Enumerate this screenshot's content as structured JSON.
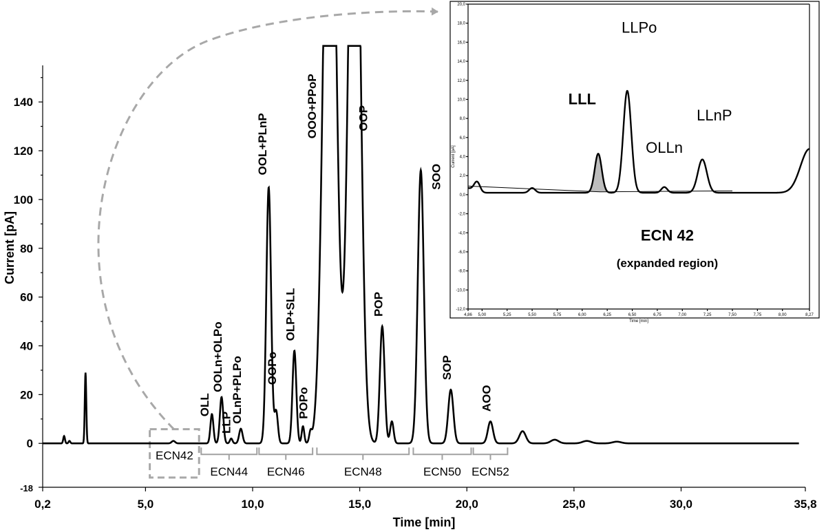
{
  "chart_data": [
    {
      "type": "line",
      "title": "",
      "xlabel": "Time [min]",
      "ylabel": "Current [pA]",
      "xlim": [
        0.2,
        35.8
      ],
      "ylim": [
        -18,
        155
      ],
      "x_ticks": [
        "0,2",
        "5,0",
        "10,0",
        "15,0",
        "20,0",
        "25,0",
        "30,0",
        "35,8"
      ],
      "x_tick_values": [
        0.2,
        5.0,
        10.0,
        15.0,
        20.0,
        25.0,
        30.0,
        35.8
      ],
      "y_ticks": [
        "-18",
        "0",
        "20",
        "40",
        "60",
        "80",
        "100",
        "120",
        "140"
      ],
      "y_tick_values": [
        -18,
        0,
        20,
        40,
        60,
        80,
        100,
        120,
        140
      ],
      "clip_max": 163,
      "series": [
        {
          "peaks": [
            {
              "x": 1.2,
              "h": 3,
              "w": 0.04
            },
            {
              "x": 1.45,
              "h": 1,
              "w": 0.04
            },
            {
              "x": 2.2,
              "h": 29,
              "w": 0.035
            },
            {
              "x": 6.3,
              "h": 1,
              "w": 0.08
            },
            {
              "x": 8.1,
              "h": 12,
              "w": 0.07
            },
            {
              "x": 8.55,
              "h": 19,
              "w": 0.08
            },
            {
              "x": 9.0,
              "h": 2,
              "w": 0.06
            },
            {
              "x": 9.45,
              "h": 6,
              "w": 0.08
            },
            {
              "x": 10.75,
              "h": 105,
              "w": 0.11
            },
            {
              "x": 11.1,
              "h": 13,
              "w": 0.08
            },
            {
              "x": 11.95,
              "h": 38,
              "w": 0.09
            },
            {
              "x": 12.35,
              "h": 7,
              "w": 0.06
            },
            {
              "x": 12.7,
              "h": 4,
              "w": 0.06
            },
            {
              "x": 13.6,
              "h": 300,
              "w": 0.28
            },
            {
              "x": 14.75,
              "h": 300,
              "w": 0.26
            },
            {
              "x": 16.05,
              "h": 48,
              "w": 0.11
            },
            {
              "x": 16.5,
              "h": 9,
              "w": 0.08
            },
            {
              "x": 17.85,
              "h": 112,
              "w": 0.14
            },
            {
              "x": 19.25,
              "h": 22,
              "w": 0.12
            },
            {
              "x": 21.1,
              "h": 9,
              "w": 0.12
            },
            {
              "x": 22.6,
              "h": 5,
              "w": 0.15
            },
            {
              "x": 24.1,
              "h": 1.5,
              "w": 0.18
            },
            {
              "x": 25.6,
              "h": 1,
              "w": 0.2
            },
            {
              "x": 27.0,
              "h": 0.7,
              "w": 0.2
            }
          ]
        }
      ],
      "peak_labels": [
        {
          "text": "OLL",
          "x": 7.95,
          "y": 11
        },
        {
          "text": "OOLn+OLPo",
          "x": 8.55,
          "y": 21
        },
        {
          "text": "LLP",
          "x": 8.95,
          "y": 4
        },
        {
          "text": "OLnP+PLPo",
          "x": 9.45,
          "y": 8
        },
        {
          "text": "OOL+PLnP",
          "x": 10.65,
          "y": 110
        },
        {
          "text": "OOPo",
          "x": 11.1,
          "y": 24
        },
        {
          "text": "OLP+SLL",
          "x": 11.95,
          "y": 42
        },
        {
          "text": "POPo",
          "x": 12.55,
          "y": 10
        },
        {
          "text": "OOO+PPoP",
          "x": 12.95,
          "y": 125
        },
        {
          "text": "OOP",
          "x": 15.35,
          "y": 128
        },
        {
          "text": "POP",
          "x": 16.05,
          "y": 52
        },
        {
          "text": "SOO",
          "x": 18.75,
          "y": 104
        },
        {
          "text": "SOP",
          "x": 19.25,
          "y": 26
        },
        {
          "text": "AOO",
          "x": 21.1,
          "y": 13
        }
      ],
      "ecn_regions": [
        {
          "label": "ECN42",
          "from": 5.2,
          "to": 7.5,
          "style": "dashed-box"
        },
        {
          "label": "ECN44",
          "from": 7.6,
          "to": 10.2,
          "style": "bracket"
        },
        {
          "label": "ECN46",
          "from": 10.3,
          "to": 12.8,
          "style": "bracket"
        },
        {
          "label": "ECN48",
          "from": 13.0,
          "to": 17.3,
          "style": "bracket"
        },
        {
          "label": "ECN50",
          "from": 17.5,
          "to": 20.2,
          "style": "bracket"
        },
        {
          "label": "ECN52",
          "from": 20.3,
          "to": 21.9,
          "style": "bracket"
        }
      ]
    },
    {
      "type": "line",
      "title": "ECN 42",
      "subtitle": "(expanded region)",
      "xlabel": "Time [min]",
      "ylabel": "Current [pA]",
      "xlim": [
        4.86,
        8.27
      ],
      "ylim": [
        -12.0,
        20.0
      ],
      "x_ticks": [
        "4,86",
        "5,00",
        "5,25",
        "5,50",
        "5,75",
        "6,00",
        "6,25",
        "6,50",
        "6,75",
        "7,00",
        "7,25",
        "7,50",
        "7,75",
        "8,00",
        "8,27"
      ],
      "x_tick_values": [
        4.86,
        5.0,
        5.25,
        5.5,
        5.75,
        6.0,
        6.25,
        6.5,
        6.75,
        7.0,
        7.25,
        7.5,
        7.75,
        8.0,
        8.27
      ],
      "y_ticks": [
        "20,0",
        "18,0",
        "16,0",
        "14,0",
        "12,0",
        "10,0",
        "8,0",
        "6,0",
        "4,0",
        "2,0",
        "0,0",
        "-2,0",
        "-4,0",
        "-6,0",
        "-8,0",
        "-10,0",
        "-12,0"
      ],
      "y_tick_values": [
        20,
        18,
        16,
        14,
        12,
        10,
        8,
        6,
        4,
        2,
        0,
        -2,
        -4,
        -6,
        -8,
        -10,
        -12
      ],
      "baseline_points": [
        [
          4.86,
          0.9
        ],
        [
          6.18,
          0.3
        ],
        [
          7.5,
          0.4
        ]
      ],
      "series": [
        {
          "peaks": [
            {
              "x": 4.95,
              "h": 1.0,
              "w": 0.03
            },
            {
              "x": 5.5,
              "h": 0.5,
              "w": 0.03
            },
            {
              "x": 6.16,
              "h": 4.1,
              "w": 0.035
            },
            {
              "x": 6.45,
              "h": 10.7,
              "w": 0.04
            },
            {
              "x": 6.82,
              "h": 0.6,
              "w": 0.03
            },
            {
              "x": 7.2,
              "h": 3.5,
              "w": 0.045
            },
            {
              "x": 8.27,
              "h": 4.6,
              "w": 0.09
            }
          ]
        }
      ],
      "peak_labels": [
        {
          "text": "LLL",
          "x": 6.0,
          "y": 9.5,
          "bold": true
        },
        {
          "text": "LLPo",
          "x": 6.57,
          "y": 17.0,
          "bold": false
        },
        {
          "text": "LLnP",
          "x": 7.32,
          "y": 7.8,
          "bold": false
        },
        {
          "text": "OLLn",
          "x": 6.82,
          "y": 4.4,
          "bold": false
        }
      ]
    }
  ]
}
